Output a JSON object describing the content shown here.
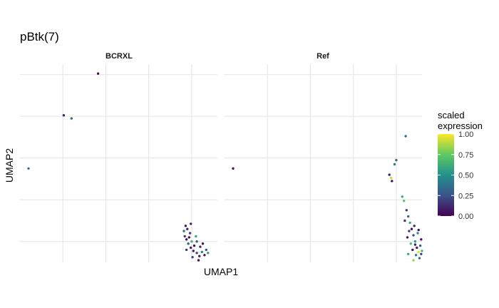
{
  "chart_data": {
    "type": "scatter",
    "title": "pBtk(7)",
    "xlabel": "UMAP1",
    "ylabel": "UMAP2",
    "facets": [
      "BCRXL",
      "Ref"
    ],
    "xlim": [
      -12,
      11
    ],
    "ylim": [
      -8,
      11
    ],
    "x_gridlines": [
      -7,
      -2,
      3,
      8
    ],
    "y_gridlines": [
      -6,
      -2,
      2,
      6,
      10
    ],
    "grid": true,
    "axis_tick_labels": false,
    "color_scale": "viridis",
    "legend": {
      "title": "scaled\nexpression",
      "ticks": [
        0.0,
        0.25,
        0.5,
        0.75,
        1.0
      ],
      "tick_labels": [
        "0.00",
        "0.25",
        "0.50",
        "0.75",
        "1.00"
      ],
      "placement": "right",
      "colors": [
        "#440154",
        "#3b528b",
        "#21918c",
        "#5ec962",
        "#fde725"
      ]
    },
    "points": {
      "BCRXL": [
        {
          "x": -2.9,
          "y": 10.1,
          "v": 0.05
        },
        {
          "x": -6.9,
          "y": 6.1,
          "v": 0.1
        },
        {
          "x": -6.0,
          "y": 5.8,
          "v": 0.35
        },
        {
          "x": -11.0,
          "y": 1.0,
          "v": 0.4
        },
        {
          "x": 7.2,
          "y": -5.5,
          "v": 0.15
        },
        {
          "x": 7.4,
          "y": -5.8,
          "v": 0.05
        },
        {
          "x": 7.6,
          "y": -6.2,
          "v": 0.3
        },
        {
          "x": 7.9,
          "y": -6.6,
          "v": 0.1
        },
        {
          "x": 8.2,
          "y": -6.9,
          "v": 0.05
        },
        {
          "x": 8.6,
          "y": -7.1,
          "v": 0.2
        },
        {
          "x": 8.9,
          "y": -7.4,
          "v": 0.1
        },
        {
          "x": 9.2,
          "y": -7.0,
          "v": 0.45
        },
        {
          "x": 9.5,
          "y": -7.3,
          "v": 0.05
        },
        {
          "x": 9.7,
          "y": -6.8,
          "v": 0.25
        },
        {
          "x": 9.9,
          "y": -7.1,
          "v": 0.55
        },
        {
          "x": 8.0,
          "y": -6.0,
          "v": 0.65
        },
        {
          "x": 8.3,
          "y": -6.4,
          "v": 0.05
        },
        {
          "x": 7.8,
          "y": -5.2,
          "v": 0.2
        },
        {
          "x": 7.5,
          "y": -4.8,
          "v": 0.1
        },
        {
          "x": 7.3,
          "y": -4.5,
          "v": 0.05
        },
        {
          "x": 8.6,
          "y": -6.0,
          "v": 0.3
        },
        {
          "x": 9.0,
          "y": -6.5,
          "v": 0.15
        },
        {
          "x": 7.1,
          "y": -5.0,
          "v": 0.4
        },
        {
          "x": 7.7,
          "y": -5.6,
          "v": 0.05
        },
        {
          "x": 8.1,
          "y": -7.5,
          "v": 0.2
        },
        {
          "x": 8.8,
          "y": -7.8,
          "v": 0.05
        },
        {
          "x": 7.4,
          "y": -6.8,
          "v": 0.15
        },
        {
          "x": 7.9,
          "y": -4.3,
          "v": 0.1
        },
        {
          "x": 8.5,
          "y": -5.5,
          "v": 0.6
        },
        {
          "x": 9.3,
          "y": -6.2,
          "v": 0.05
        }
      ],
      "Ref": [
        {
          "x": -11.0,
          "y": 1.0,
          "v": 0.05
        },
        {
          "x": 9.1,
          "y": 4.1,
          "v": 0.4
        },
        {
          "x": 8.0,
          "y": 1.8,
          "v": 0.35
        },
        {
          "x": 7.8,
          "y": 1.4,
          "v": 0.4
        },
        {
          "x": 7.2,
          "y": 0.4,
          "v": 0.1
        },
        {
          "x": 7.4,
          "y": 0.1,
          "v": 0.9
        },
        {
          "x": 7.5,
          "y": -0.2,
          "v": 0.05
        },
        {
          "x": 8.7,
          "y": -1.7,
          "v": 0.6
        },
        {
          "x": 8.9,
          "y": -2.1,
          "v": 0.75
        },
        {
          "x": 9.2,
          "y": -3.0,
          "v": 0.15
        },
        {
          "x": 9.4,
          "y": -3.6,
          "v": 0.35
        },
        {
          "x": 9.6,
          "y": -4.2,
          "v": 0.6
        },
        {
          "x": 9.8,
          "y": -4.8,
          "v": 0.05
        },
        {
          "x": 10.0,
          "y": -5.4,
          "v": 0.25
        },
        {
          "x": 10.2,
          "y": -6.0,
          "v": 0.55
        },
        {
          "x": 10.4,
          "y": -6.6,
          "v": 0.1
        },
        {
          "x": 10.6,
          "y": -7.0,
          "v": 0.95
        },
        {
          "x": 10.8,
          "y": -6.4,
          "v": 0.3
        },
        {
          "x": 10.9,
          "y": -5.8,
          "v": 0.05
        },
        {
          "x": 11.0,
          "y": -6.9,
          "v": 0.65
        },
        {
          "x": 9.5,
          "y": -5.0,
          "v": 0.2
        },
        {
          "x": 9.9,
          "y": -6.8,
          "v": 0.05
        },
        {
          "x": 10.3,
          "y": -7.3,
          "v": 0.4
        },
        {
          "x": 9.7,
          "y": -6.2,
          "v": 0.7
        },
        {
          "x": 10.1,
          "y": -4.5,
          "v": 0.1
        },
        {
          "x": 10.5,
          "y": -5.2,
          "v": 0.5
        },
        {
          "x": 9.3,
          "y": -5.6,
          "v": 0.05
        },
        {
          "x": 10.7,
          "y": -7.6,
          "v": 0.35
        },
        {
          "x": 9.0,
          "y": -4.0,
          "v": 0.15
        },
        {
          "x": 10.0,
          "y": -7.8,
          "v": 0.85
        },
        {
          "x": 10.6,
          "y": -4.9,
          "v": 0.05
        },
        {
          "x": 9.4,
          "y": -7.2,
          "v": 0.6
        },
        {
          "x": 10.9,
          "y": -7.2,
          "v": 0.2
        },
        {
          "x": 10.2,
          "y": -6.3,
          "v": 0.1
        }
      ]
    }
  }
}
